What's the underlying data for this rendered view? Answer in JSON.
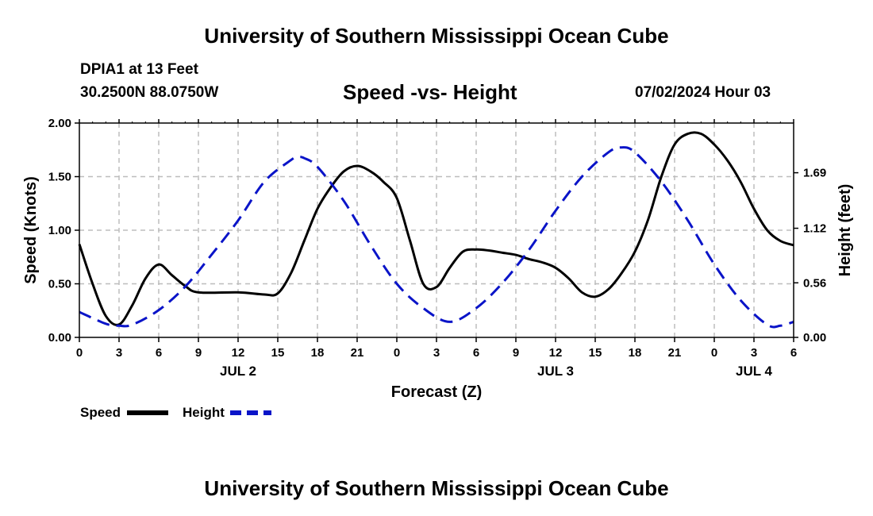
{
  "header": {
    "title": "University of Southern Mississippi Ocean Cube",
    "station": "DPIA1 at 13 Feet",
    "coords": "30.2500N  88.0750W",
    "subtitle": "Speed -vs- Height",
    "datetime": "07/02/2024 Hour 03"
  },
  "footer": {
    "title": "University of Southern Mississippi Ocean Cube"
  },
  "chart_data": {
    "type": "line",
    "title": "Speed -vs- Height",
    "xlabel": "Forecast (Z)",
    "ylabel": "Speed (Knots)",
    "y2label": "Height (feet)",
    "xlim": [
      0,
      54
    ],
    "ylim": [
      0,
      2.0
    ],
    "y2lim": [
      0,
      2.2
    ],
    "grid": true,
    "x_tick_values": [
      0,
      3,
      6,
      9,
      12,
      15,
      18,
      21,
      24,
      27,
      30,
      33,
      36,
      39,
      42,
      45,
      48,
      51,
      54
    ],
    "x_tick_labels": [
      "0",
      "3",
      "6",
      "9",
      "12",
      "15",
      "18",
      "21",
      "0",
      "3",
      "6",
      "9",
      "12",
      "15",
      "18",
      "21",
      "0",
      "3",
      "6"
    ],
    "date_labels": [
      {
        "x": 12,
        "label": "JUL 2"
      },
      {
        "x": 36,
        "label": "JUL 3"
      },
      {
        "x": 51,
        "label": "JUL 4"
      }
    ],
    "y_ticks": [
      {
        "value": 0.0,
        "label": "0.00"
      },
      {
        "value": 0.5,
        "label": "0.50"
      },
      {
        "value": 1.0,
        "label": "1.00"
      },
      {
        "value": 1.5,
        "label": "1.50"
      },
      {
        "value": 2.0,
        "label": "2.00"
      }
    ],
    "y2_ticks": [
      {
        "value": 0.0,
        "label": "0.00"
      },
      {
        "value": 0.56,
        "label": "0.56"
      },
      {
        "value": 1.12,
        "label": "1.12"
      },
      {
        "value": 1.69,
        "label": "1.69"
      }
    ],
    "series": [
      {
        "name": "Speed",
        "axis": "left",
        "color": "#000000",
        "dash": "solid",
        "x": [
          0,
          1,
          2,
          3,
          4,
          5,
          6,
          7,
          8,
          9,
          12,
          14,
          15,
          16,
          17,
          18,
          19,
          20,
          21,
          22,
          23,
          24,
          25,
          26,
          27,
          28,
          29,
          30,
          31,
          32,
          33,
          34,
          35,
          36,
          37,
          38,
          39,
          40,
          41,
          42,
          43,
          44,
          45,
          46,
          47,
          48,
          49,
          50,
          51,
          52,
          53,
          54
        ],
        "values": [
          0.87,
          0.5,
          0.2,
          0.12,
          0.3,
          0.55,
          0.68,
          0.58,
          0.48,
          0.42,
          0.42,
          0.4,
          0.41,
          0.6,
          0.9,
          1.2,
          1.4,
          1.55,
          1.6,
          1.55,
          1.45,
          1.3,
          0.9,
          0.5,
          0.47,
          0.65,
          0.8,
          0.82,
          0.81,
          0.79,
          0.77,
          0.73,
          0.7,
          0.65,
          0.55,
          0.42,
          0.38,
          0.45,
          0.6,
          0.8,
          1.1,
          1.5,
          1.8,
          1.9,
          1.9,
          1.8,
          1.65,
          1.45,
          1.2,
          1.0,
          0.9,
          0.86
        ]
      },
      {
        "name": "Height",
        "axis": "right",
        "color": "#0a14c8",
        "dash": "dashed",
        "x": [
          0,
          2,
          3,
          4,
          6,
          8,
          10,
          12,
          14,
          16,
          16.5,
          17,
          18,
          20,
          22,
          24,
          26,
          28,
          30,
          32,
          34,
          36,
          38,
          40,
          41,
          42,
          44,
          46,
          48,
          50,
          52,
          53,
          54
        ],
        "values": [
          0.26,
          0.14,
          0.12,
          0.13,
          0.28,
          0.52,
          0.85,
          1.2,
          1.6,
          1.82,
          1.85,
          1.84,
          1.75,
          1.4,
          0.95,
          0.55,
          0.3,
          0.16,
          0.3,
          0.56,
          0.9,
          1.3,
          1.65,
          1.9,
          1.95,
          1.9,
          1.6,
          1.2,
          0.75,
          0.38,
          0.13,
          0.12,
          0.16
        ]
      }
    ],
    "legend": [
      {
        "label": "Speed",
        "color": "#000000",
        "dash": "solid"
      },
      {
        "label": "Height",
        "color": "#0a14c8",
        "dash": "dashed"
      }
    ]
  }
}
